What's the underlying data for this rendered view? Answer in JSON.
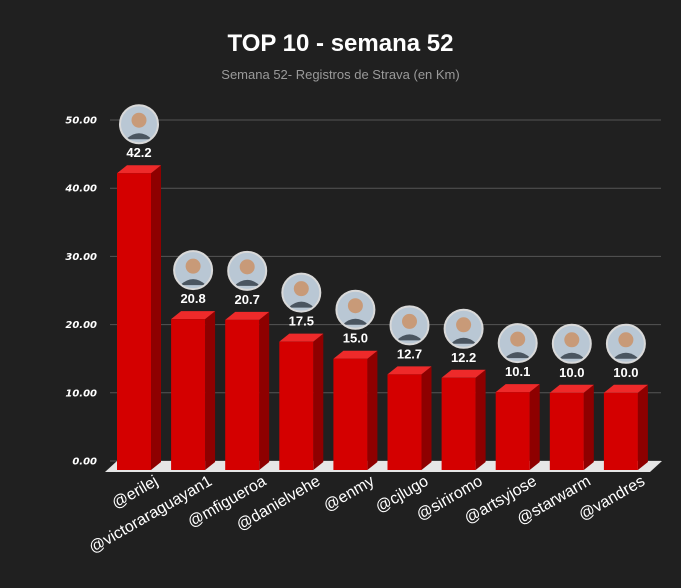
{
  "chart_data": {
    "type": "bar",
    "title": "TOP 10 - semana 52",
    "subtitle": "Semana 52- Registros de Strava (en Km)",
    "categories": [
      "@erilej",
      "@victoraraguayan1",
      "@mfigueroa",
      "@danielvehe",
      "@enmy",
      "@cjlugo",
      "@siriromo",
      "@artsyjose",
      "@starwarm",
      "@vandres"
    ],
    "values": [
      42.2,
      20.8,
      20.7,
      17.5,
      15.0,
      12.7,
      12.2,
      10.1,
      10.0,
      10.0
    ],
    "value_labels": [
      "42.2",
      "20.8",
      "20.7",
      "17.5",
      "15.0",
      "12.7",
      "12.2",
      "10.1",
      "10.0",
      "10.0"
    ],
    "ylim": [
      0,
      50
    ],
    "yticks": [
      0,
      10,
      20,
      30,
      40,
      50
    ],
    "ytick_labels": [
      "0.00",
      "10.00",
      "20.00",
      "30.00",
      "40.00",
      "50.00"
    ],
    "grid": true,
    "bar_style": "3d",
    "avatars": "circular profile photo above each bar"
  },
  "colors": {
    "background": "#202020",
    "bar_front": "#d40000",
    "bar_side": "#8e0000",
    "bar_top": "#ee2a2a",
    "floor": "#e6e6e6",
    "grid": "#555555",
    "text": "#ffffff",
    "subtitle": "#9a9a9a"
  }
}
